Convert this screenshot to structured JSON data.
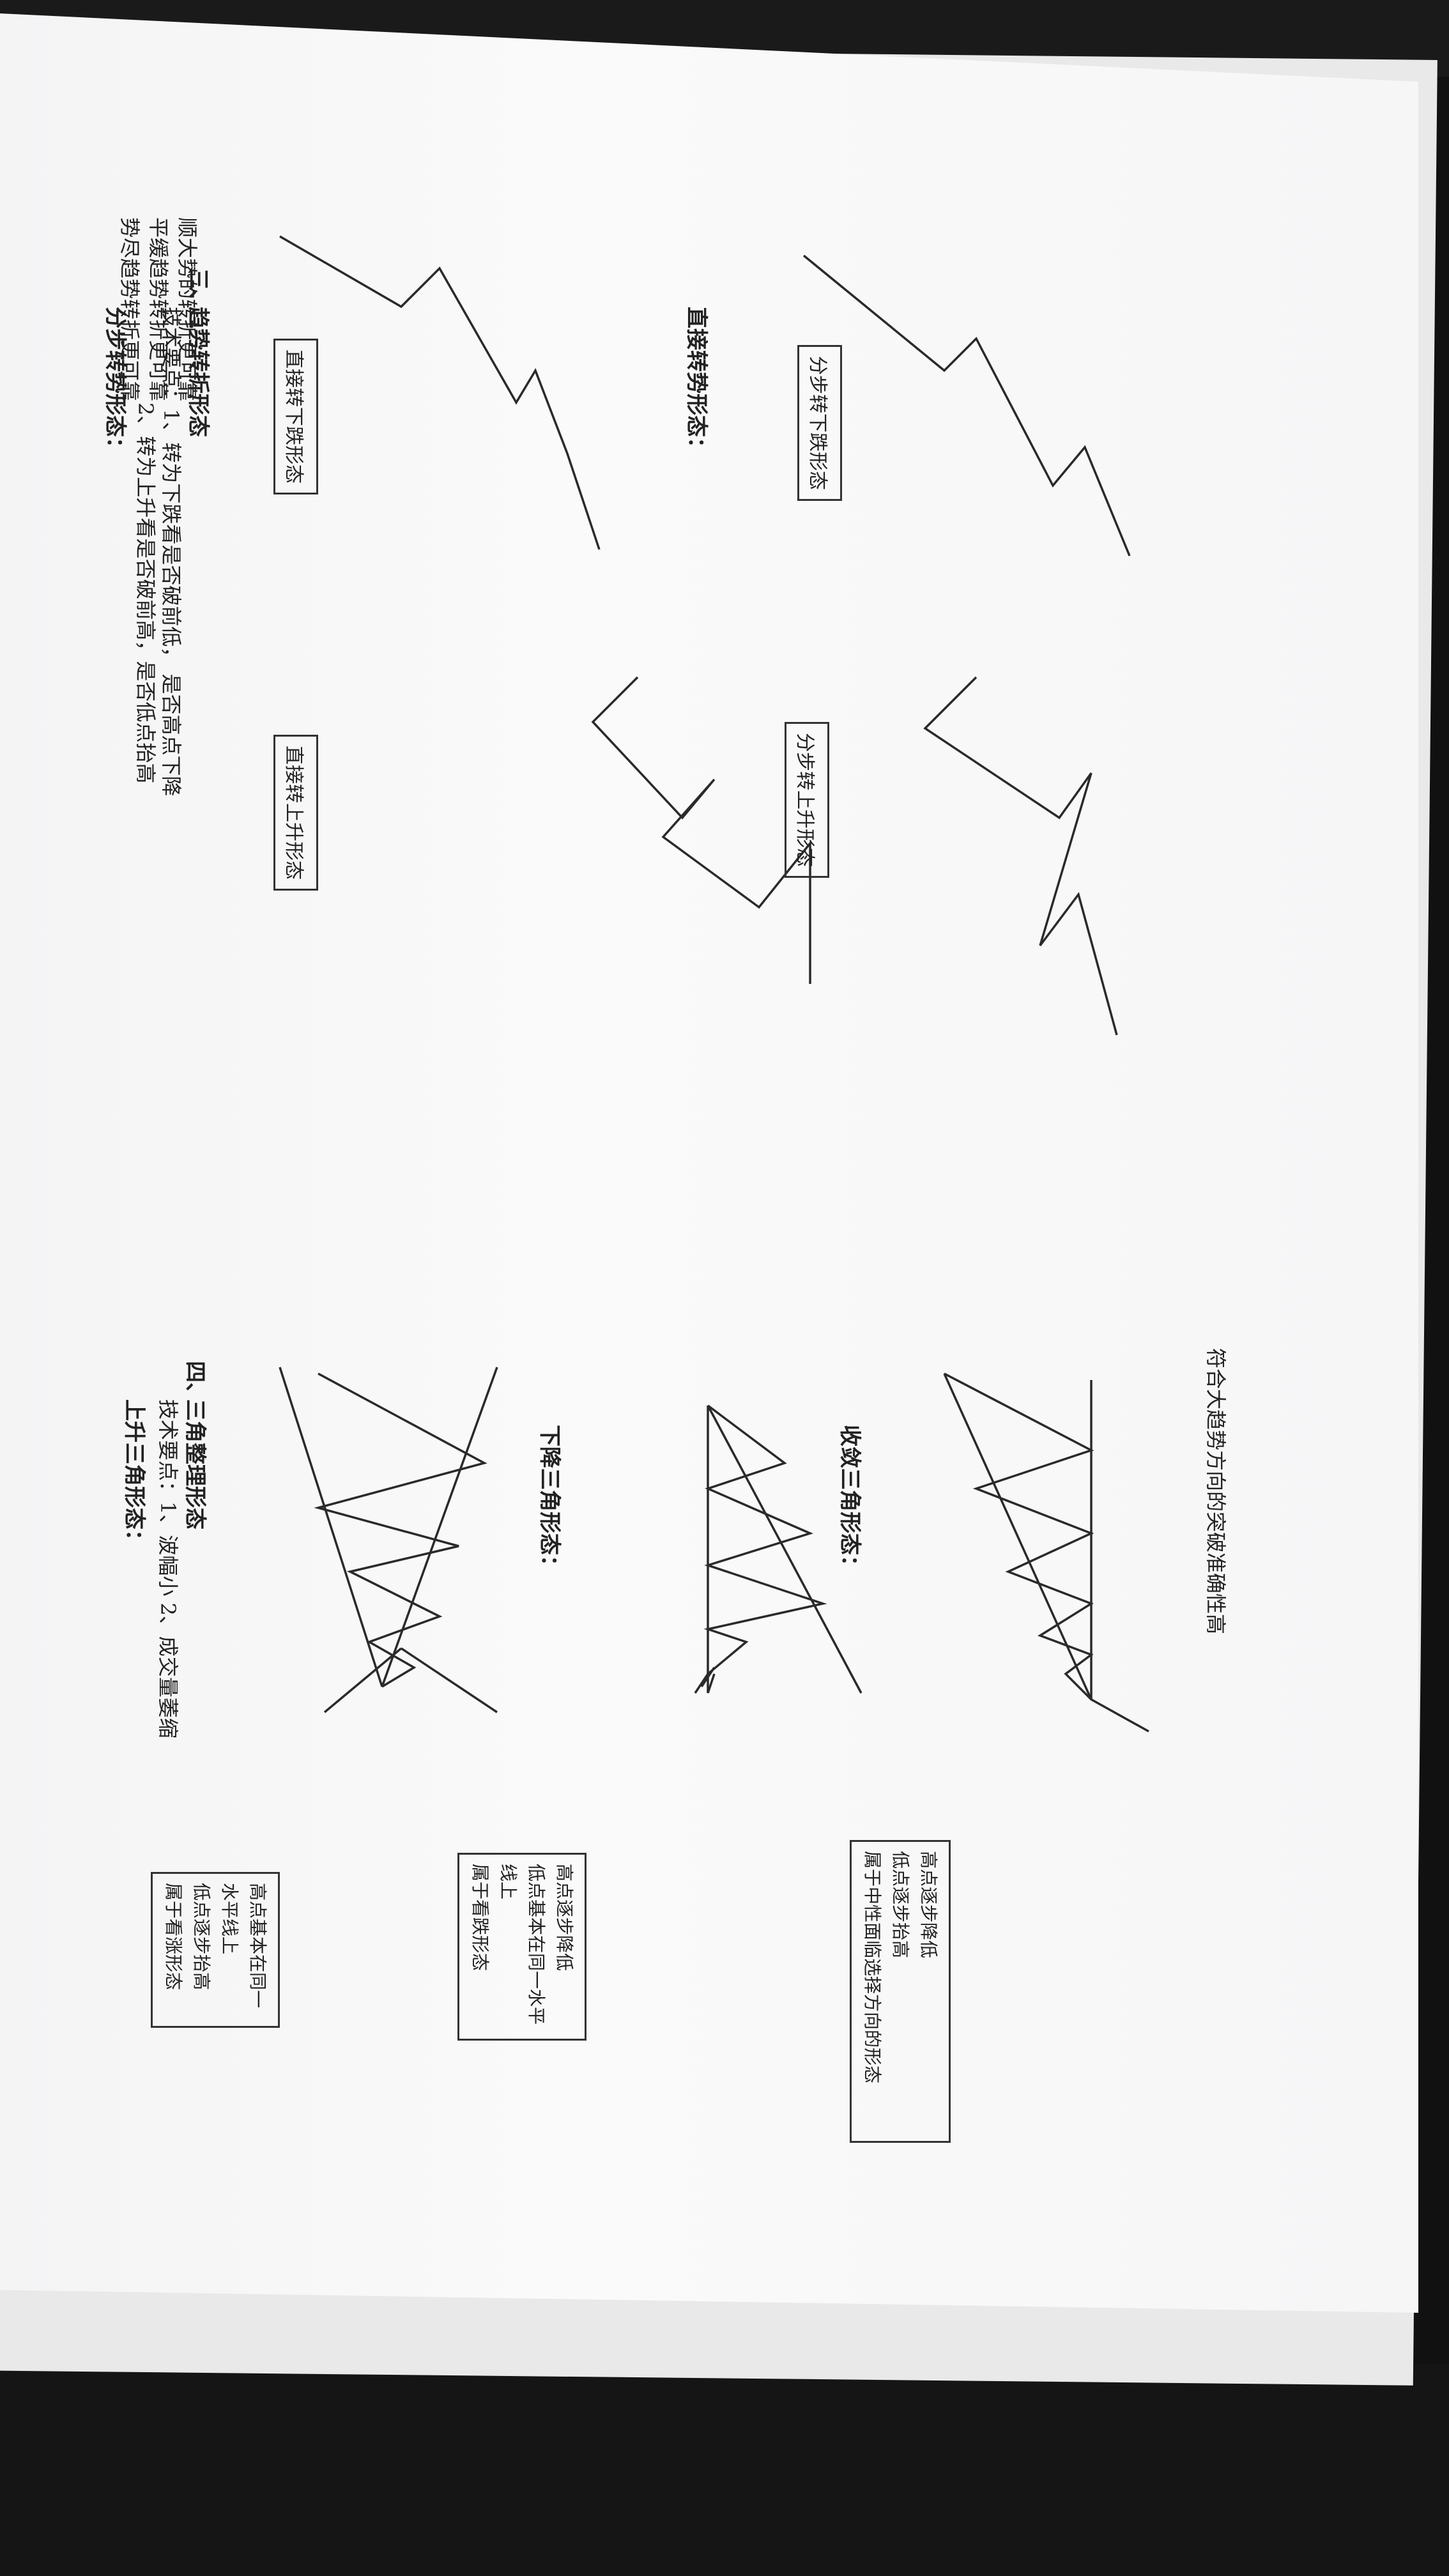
{
  "section3": {
    "number": "三、",
    "title": "趋势转折形态",
    "tech_label": "技术要点：1、转为下跌看是否破前低，  是否高点下降",
    "tech_point2": "2、转为上升看是否破前高，是否低点抬高",
    "subtitle_step": "分步转势形态：",
    "label_step_down": "分步转下跌形态",
    "label_step_up": "分步转上升形态",
    "subtitle_direct": "直接转势形态：",
    "label_direct_down": "直接转下跌形态",
    "label_direct_up": "直接转上升形态",
    "notes": [
      "顺大势的转折更可靠",
      "平缓趋势转折更可靠",
      "势尽趋势转折更可靠"
    ]
  },
  "section4": {
    "number": "四、",
    "title": "三角整理形态",
    "tech_label": "技术要点：1、波幅小  2、成交量萎缩",
    "subtitle_up": "上升三角形态：",
    "box_up": [
      "高点基本在同一水平线上",
      "低点逐步抬高",
      "属于看涨形态"
    ],
    "subtitle_down": "下降三角形态：",
    "box_down": [
      "高点逐步降低",
      "低点基本在同一水平线上",
      "属于看跌形态"
    ],
    "subtitle_converge": "收敛三角形态：",
    "box_converge": [
      "高点逐步降低",
      "低点逐步抬高",
      "属于中性面临选择方向的形态"
    ],
    "footer": "符合大趋势方向的突破准确性高"
  }
}
